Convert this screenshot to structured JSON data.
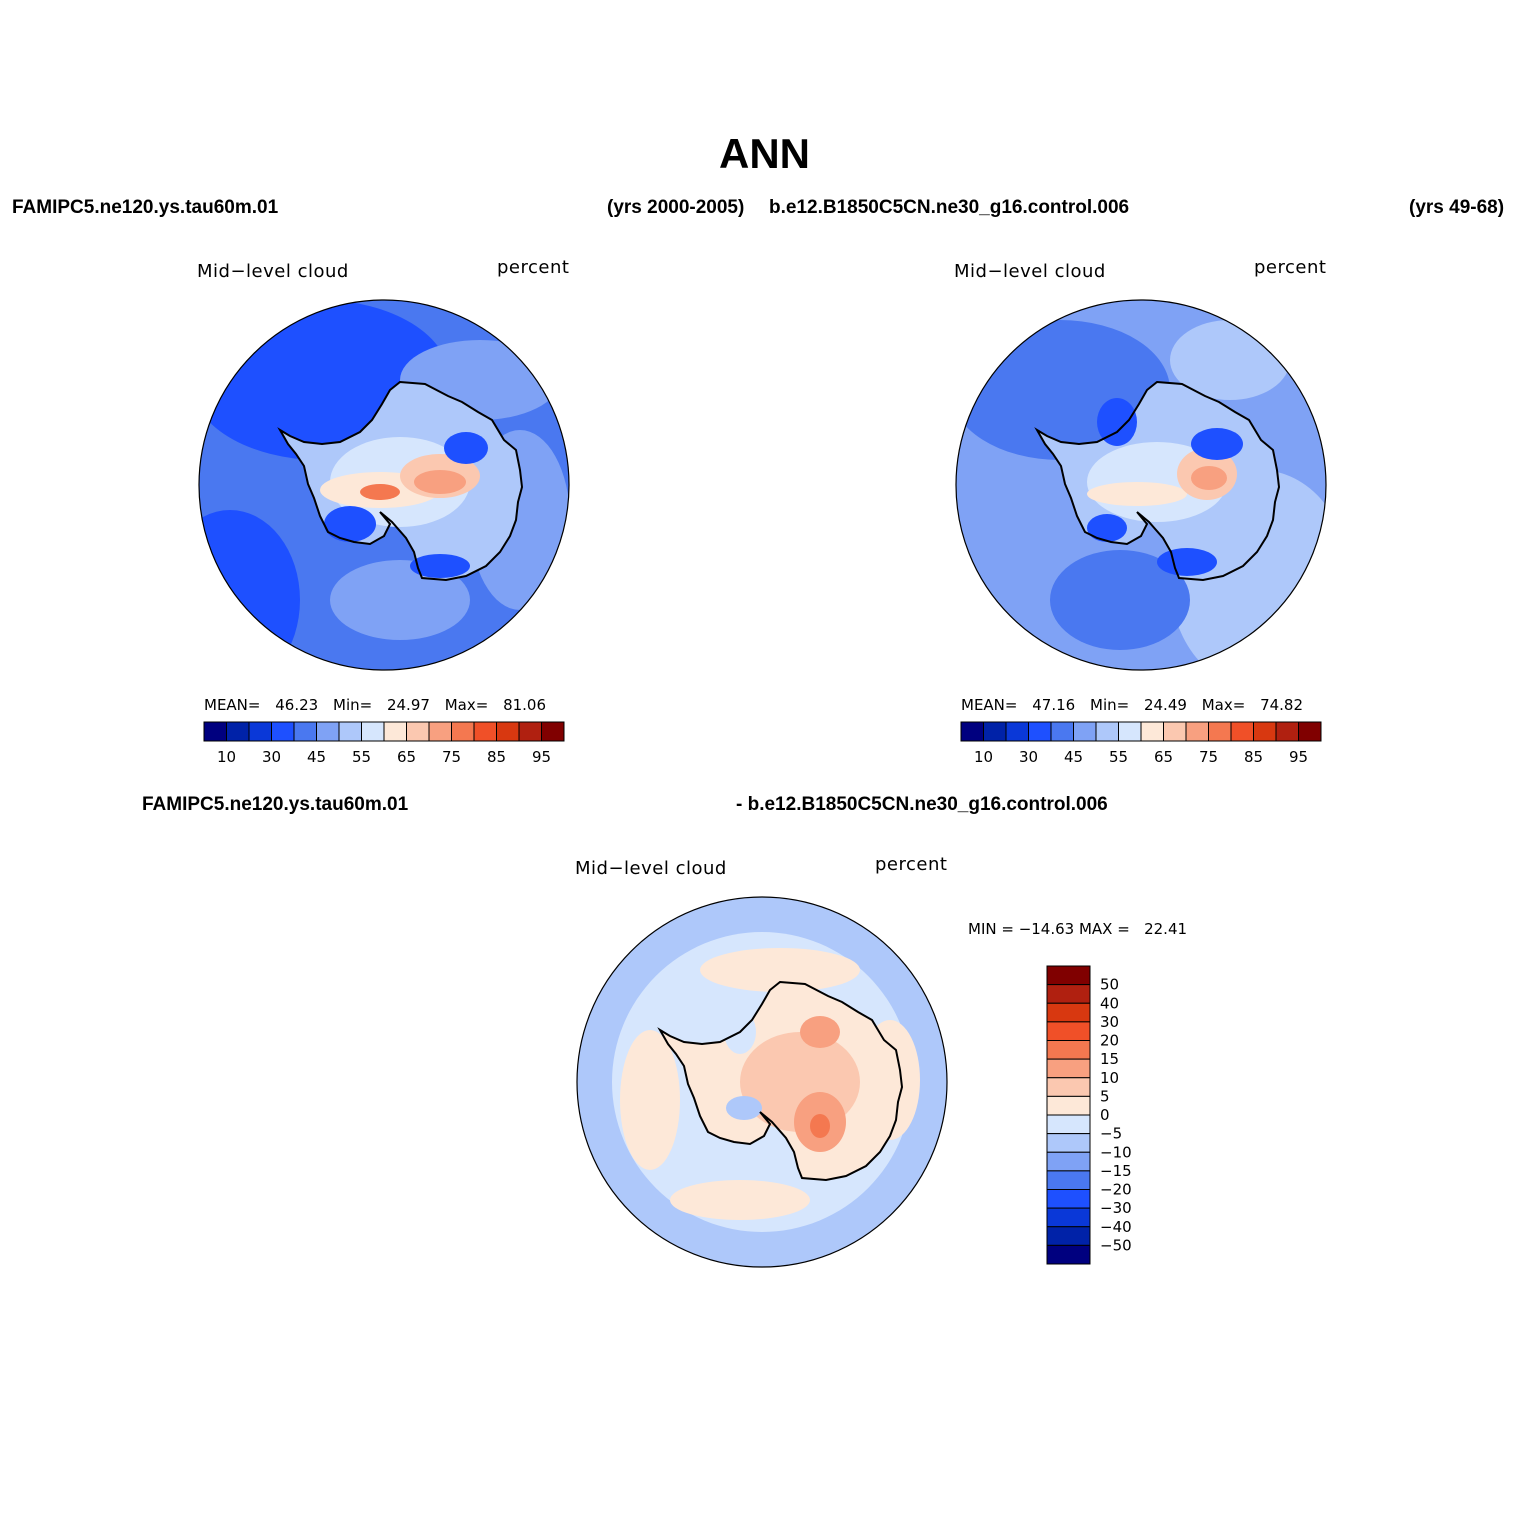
{
  "page": {
    "title": "ANN",
    "left_case": "FAMIPC5.ne120.ys.tau60m.01",
    "left_years": "(yrs 2000-2005)",
    "right_case": "b.e12.B1850C5CN.ne30_g16.control.006",
    "right_years": "(yrs 49-68)",
    "diff_left": "FAMIPC5.ne120.ys.tau60m.01",
    "diff_right": "- b.e12.B1850C5CN.ne30_g16.control.006"
  },
  "chart_data": [
    {
      "type": "heatmap",
      "variable": "Mid−level cloud",
      "units": "percent",
      "stats": [
        {
          "label": "MEAN=",
          "value": "46.23"
        },
        {
          "label": "Min=",
          "value": "24.97"
        },
        {
          "label": "Max=",
          "value": "81.06"
        }
      ],
      "colorbar_labels": [
        "10",
        "30",
        "45",
        "55",
        "65",
        "75",
        "85",
        "95"
      ],
      "colorbar_colors": [
        "#00007f",
        "#0022a8",
        "#0a38d8",
        "#1e50ff",
        "#4a78f0",
        "#7fa2f5",
        "#aec8fa",
        "#d6e6fd",
        "#fde8d8",
        "#fbc8b0",
        "#f8a080",
        "#f47850",
        "#f05028",
        "#d83810",
        "#b02010",
        "#800000"
      ]
    },
    {
      "type": "heatmap",
      "variable": "Mid−level cloud",
      "units": "percent",
      "stats": [
        {
          "label": "MEAN=",
          "value": "47.16"
        },
        {
          "label": "Min=",
          "value": "24.49"
        },
        {
          "label": "Max=",
          "value": "74.82"
        }
      ],
      "colorbar_labels": [
        "10",
        "30",
        "45",
        "55",
        "65",
        "75",
        "85",
        "95"
      ],
      "colorbar_colors": [
        "#00007f",
        "#0022a8",
        "#0a38d8",
        "#1e50ff",
        "#4a78f0",
        "#7fa2f5",
        "#aec8fa",
        "#d6e6fd",
        "#fde8d8",
        "#fbc8b0",
        "#f8a080",
        "#f47850",
        "#f05028",
        "#d83810",
        "#b02010",
        "#800000"
      ]
    },
    {
      "type": "heatmap",
      "variable": "Mid−level cloud",
      "units": "percent",
      "minmax": "MIN = −14.63 MAX =   22.41",
      "colorbar_labels": [
        "50",
        "40",
        "30",
        "20",
        "15",
        "10",
        "5",
        "0",
        "−5",
        "−10",
        "−15",
        "−20",
        "−30",
        "−40",
        "−50"
      ],
      "colorbar_colors": [
        "#800000",
        "#b02010",
        "#d83810",
        "#f05028",
        "#f47850",
        "#f8a080",
        "#fbc8b0",
        "#fde8d8",
        "#d6e6fd",
        "#aec8fa",
        "#7fa2f5",
        "#4a78f0",
        "#1e50ff",
        "#0a38d8",
        "#0022a8",
        "#00007f"
      ]
    }
  ]
}
